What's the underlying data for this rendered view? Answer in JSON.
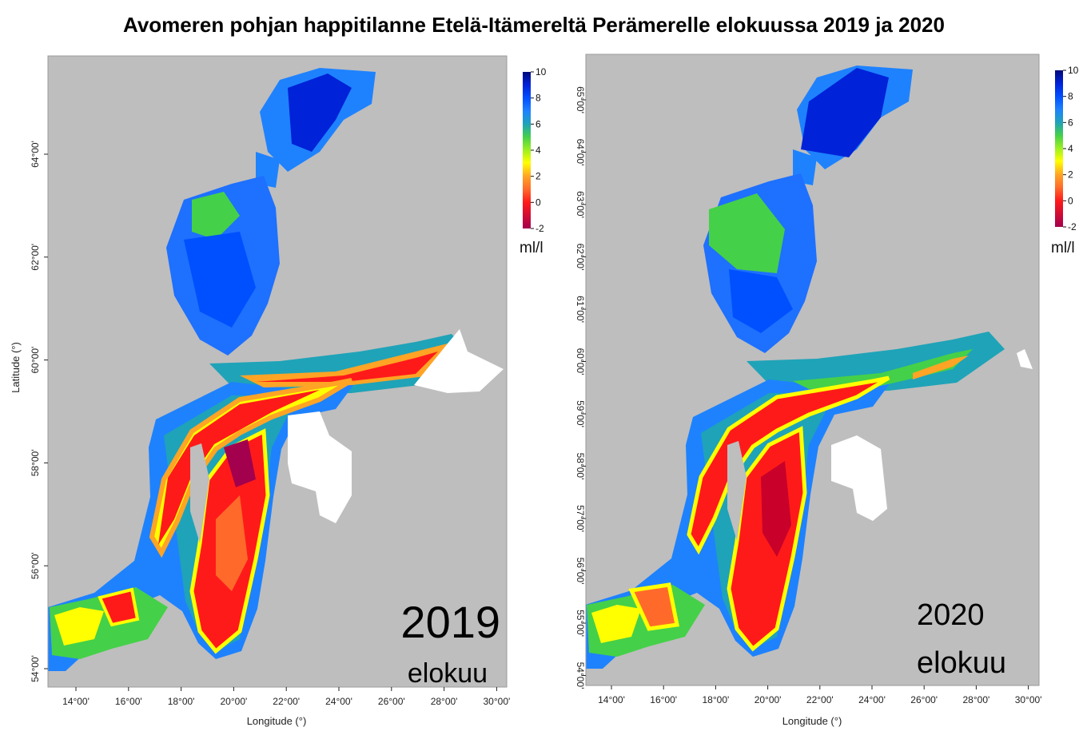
{
  "title": "Avomeren pohjan happitilanne Etelä-Itämereltä Perämerelle elokuussa 2019 ja 2020",
  "x_axis_label": "Longitude (°)",
  "y_axis_label": "Latitude (°)",
  "lon_ticks": [
    "14°00'",
    "16°00'",
    "18°00'",
    "20°00'",
    "22°00'",
    "24°00'",
    "26°00'",
    "28°00'",
    "30°00'"
  ],
  "lat_ticks_left": [
    "64°00'",
    "62°00'",
    "60°00'",
    "58°00'",
    "56°00'",
    "54°00'"
  ],
  "lat_ticks_right": [
    "65°00'",
    "64°00'",
    "63°00'",
    "62°00'",
    "61°00'",
    "60°00'",
    "59°00'",
    "58°00'",
    "57°00'",
    "56°00'",
    "55°00'",
    "54°00'"
  ],
  "colorbar": {
    "ticks": [
      "10",
      "8",
      "6",
      "4",
      "2",
      "0",
      "-2"
    ],
    "unit": "ml/l",
    "range": [
      -2,
      10
    ],
    "colors": {
      "-2": "#a3004d",
      "0": "#ff1a1a",
      "1": "#ff6a2a",
      "2": "#ffa424",
      "3": "#ffff00",
      "4": "#9ef020",
      "5": "#45d049",
      "6": "#1fa3b8",
      "7": "#1e82ff",
      "8": "#0050ff",
      "9": "#0022d8",
      "10": "#00087a"
    }
  },
  "panels": [
    {
      "year": "2019",
      "month": "elokuu"
    },
    {
      "year": "2020",
      "month": "elokuu"
    }
  ],
  "land_color": "#bebebe",
  "chart_data": {
    "type": "heatmap",
    "title": "Avomeren pohjan happitilanne Etelä-Itämereltä Perämerelle elokuussa 2019 ja 2020",
    "xlabel": "Longitude (°)",
    "ylabel": "Latitude (°)",
    "xlim": [
      13,
      30.5
    ],
    "ylim": [
      54,
      66
    ],
    "value_unit": "ml/l",
    "value_range": [
      -2,
      10
    ],
    "panels": [
      "2019 elokuu",
      "2020 elokuu"
    ]
  }
}
